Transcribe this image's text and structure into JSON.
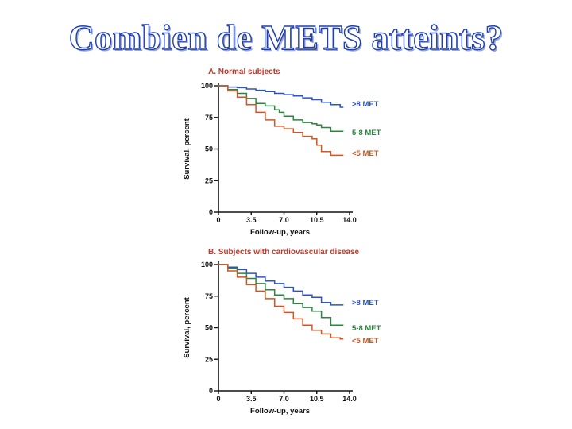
{
  "slide": {
    "title": "Combien de METS atteints?"
  },
  "colors": {
    "high": "#2c54c8",
    "mid": "#2e8540",
    "low": "#d35424",
    "title": "#1f3fb0"
  },
  "chart_data": [
    {
      "type": "line",
      "title": "A. Normal subjects",
      "xlabel": "Follow-up, years",
      "ylabel": "Survival, percent",
      "xlim": [
        0,
        14
      ],
      "ylim": [
        0,
        100
      ],
      "xticks": [
        "0",
        "3.5",
        "7.0",
        "10.5",
        "14.0"
      ],
      "yticks": [
        "0",
        "25",
        "50",
        "75",
        "100"
      ],
      "series": [
        {
          "name": ">8 MET",
          "color_key": "high",
          "x": [
            0,
            1,
            2,
            3,
            4,
            5,
            6,
            7,
            8,
            9,
            10,
            11,
            12,
            13
          ],
          "y": [
            100,
            99,
            98.5,
            97.5,
            96.5,
            95.5,
            94,
            93,
            92,
            90.5,
            89,
            87,
            85,
            83
          ]
        },
        {
          "name": "5-8 MET",
          "color_key": "mid",
          "x": [
            0,
            1,
            2,
            3,
            4,
            5,
            6,
            6.5,
            7,
            8,
            9,
            10,
            10.5,
            11,
            12,
            13
          ],
          "y": [
            100,
            97,
            94,
            90,
            86,
            84,
            81,
            79,
            76,
            73,
            71,
            70,
            69,
            67,
            64,
            64
          ]
        },
        {
          "name": "<5 MET",
          "color_key": "low",
          "x": [
            0,
            1,
            2,
            3,
            4,
            5,
            6,
            7,
            8,
            9,
            10,
            10.5,
            11,
            12,
            13
          ],
          "y": [
            100,
            96,
            91,
            85,
            79,
            73,
            68,
            66,
            63,
            60,
            58,
            53,
            48,
            45,
            45
          ]
        }
      ]
    },
    {
      "type": "line",
      "title": "B. Subjects with cardiovascular disease",
      "xlabel": "Follow-up, years",
      "ylabel": "Survival, percent",
      "xlim": [
        0,
        14
      ],
      "ylim": [
        0,
        100
      ],
      "xticks": [
        "0",
        "3.5",
        "7.0",
        "10.5",
        "14.0"
      ],
      "yticks": [
        "0",
        "25",
        "50",
        "75",
        "100"
      ],
      "series": [
        {
          "name": ">8 MET",
          "color_key": "high",
          "x": [
            0,
            1,
            2,
            3,
            4,
            5,
            6,
            7,
            8,
            9,
            10,
            11,
            12,
            13
          ],
          "y": [
            100,
            98,
            96,
            93,
            90,
            87,
            85,
            82,
            79,
            76,
            74,
            70,
            68,
            68
          ]
        },
        {
          "name": "5-8 MET",
          "color_key": "mid",
          "x": [
            0,
            1,
            2,
            3,
            4,
            5,
            6,
            7,
            8,
            9,
            10,
            11,
            12,
            13
          ],
          "y": [
            100,
            97,
            93,
            89,
            85,
            80,
            76,
            73,
            69,
            66,
            63,
            58,
            52,
            52
          ]
        },
        {
          "name": "<5 MET",
          "color_key": "low",
          "x": [
            0,
            1,
            2,
            3,
            4,
            5,
            6,
            7,
            8,
            9,
            10,
            11,
            12,
            13
          ],
          "y": [
            100,
            95,
            90,
            84,
            79,
            73,
            67,
            62,
            57,
            52,
            48,
            45,
            42,
            41
          ]
        }
      ]
    }
  ]
}
